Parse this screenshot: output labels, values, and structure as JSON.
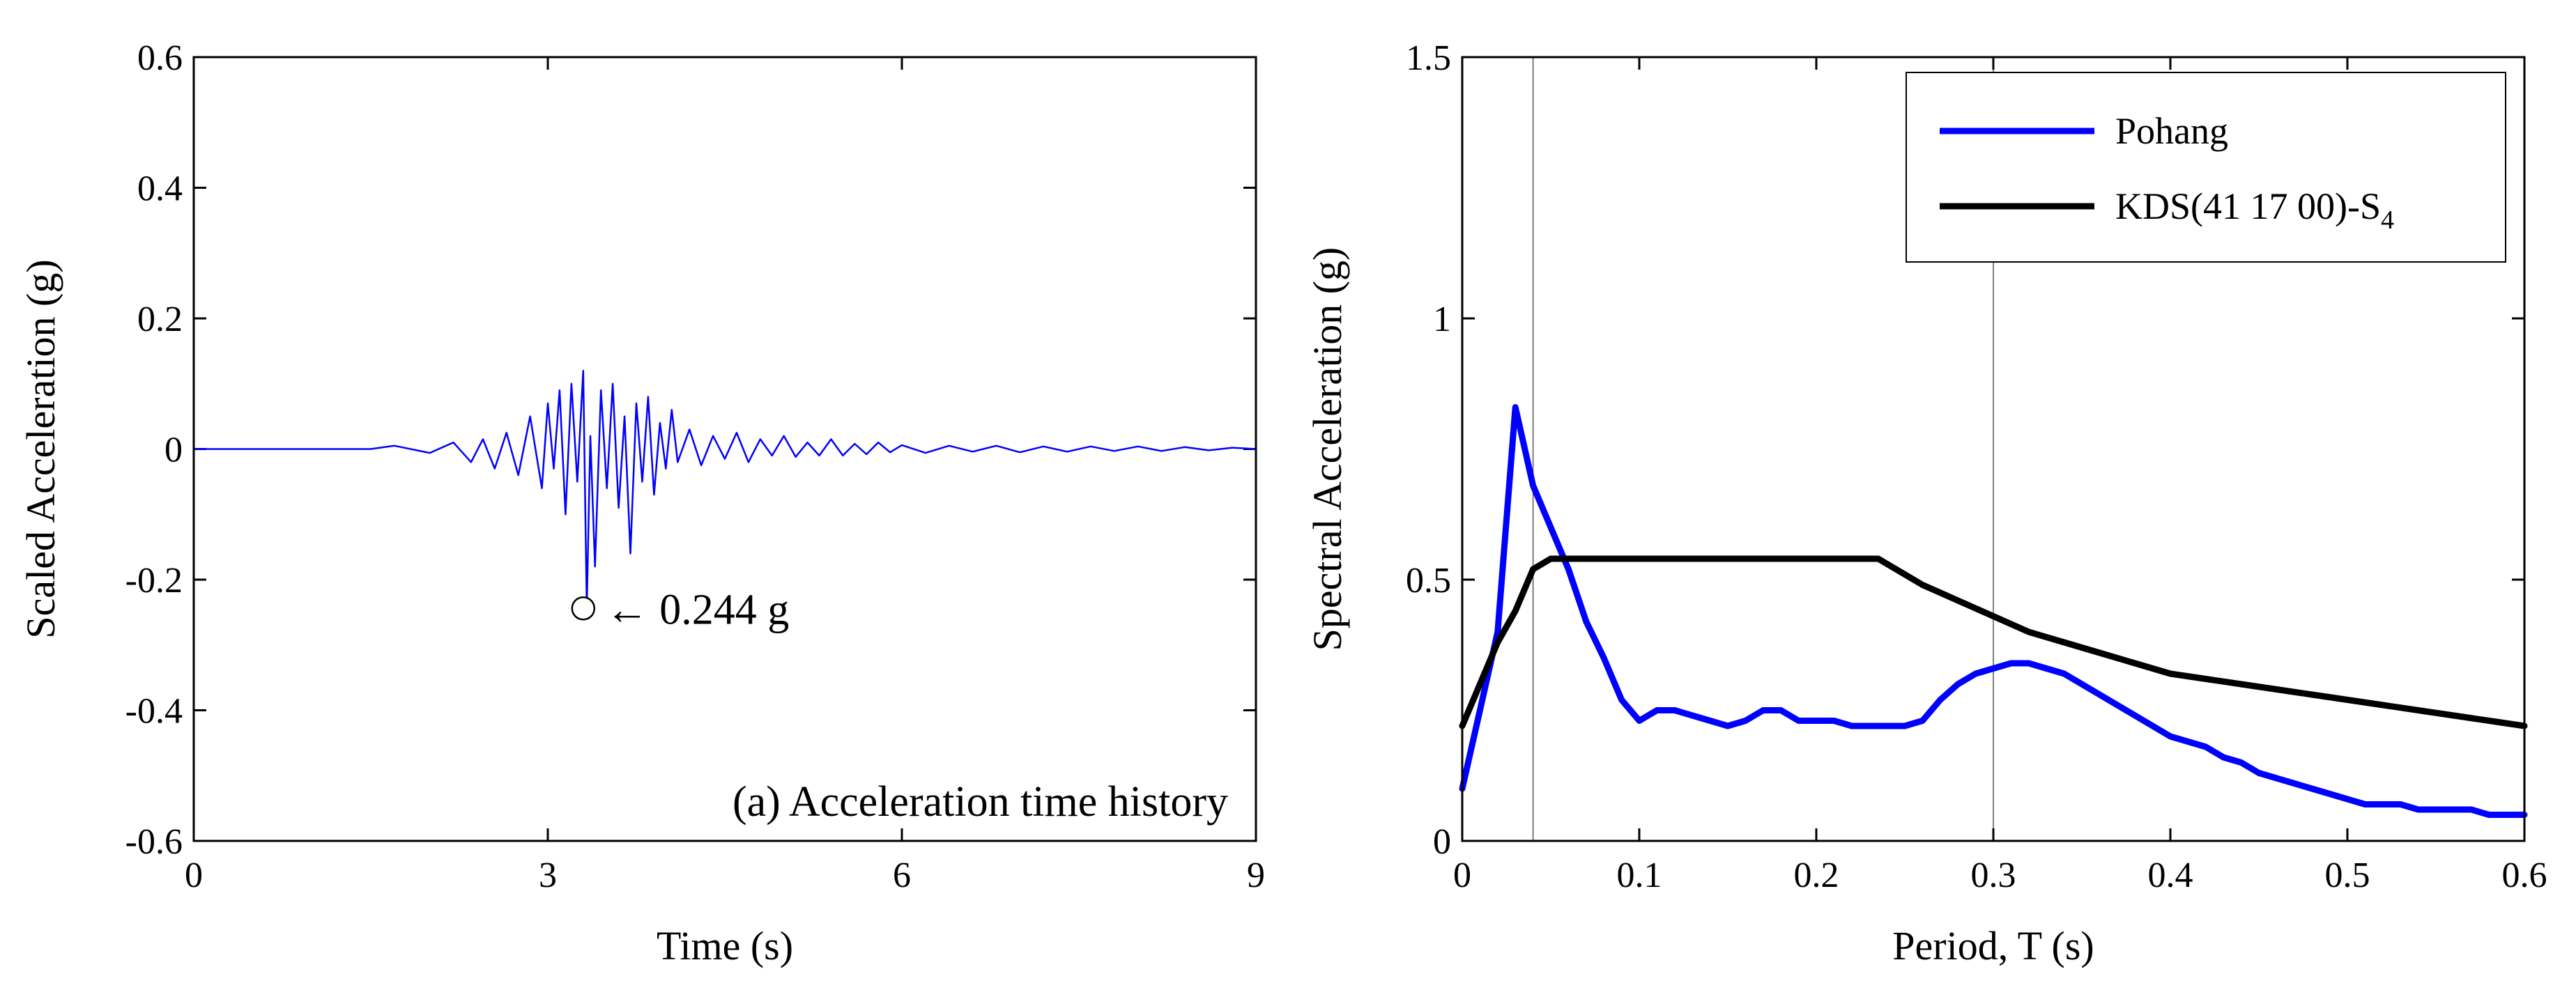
{
  "chart_data": [
    {
      "type": "line",
      "panel": "left",
      "title": "(a) Acceleration time history",
      "xlabel": "Time (s)",
      "ylabel": "Scaled Acceleration (g)",
      "xlim": [
        0,
        9
      ],
      "ylim": [
        -0.6,
        0.6
      ],
      "xticks": [
        0,
        3,
        6,
        9
      ],
      "xtick_labels": [
        "0",
        "3",
        "6",
        "9"
      ],
      "yticks": [
        0.6,
        0.4,
        0.2,
        0,
        -0.2,
        -0.4,
        -0.6
      ],
      "ytick_labels": [
        "0.6",
        "0.4",
        "0.2",
        "0",
        "-0.2",
        "-0.4",
        "-0.6"
      ],
      "series": [
        {
          "name": "acceleration",
          "color": "#0000ff",
          "x": [
            0,
            1.5,
            1.7,
            2.0,
            2.2,
            2.35,
            2.45,
            2.55,
            2.65,
            2.75,
            2.85,
            2.95,
            3.0,
            3.05,
            3.1,
            3.15,
            3.2,
            3.25,
            3.3,
            3.33,
            3.36,
            3.4,
            3.45,
            3.5,
            3.55,
            3.6,
            3.65,
            3.7,
            3.75,
            3.8,
            3.85,
            3.9,
            3.95,
            4.0,
            4.05,
            4.1,
            4.2,
            4.3,
            4.4,
            4.5,
            4.6,
            4.7,
            4.8,
            4.9,
            5.0,
            5.1,
            5.2,
            5.3,
            5.4,
            5.5,
            5.6,
            5.7,
            5.8,
            5.9,
            6.0,
            6.2,
            6.4,
            6.6,
            6.8,
            7.0,
            7.2,
            7.4,
            7.6,
            7.8,
            8.0,
            8.2,
            8.4,
            8.6,
            8.8,
            9.0
          ],
          "y": [
            0,
            0,
            0.005,
            -0.006,
            0.01,
            -0.02,
            0.015,
            -0.03,
            0.025,
            -0.04,
            0.05,
            -0.06,
            0.07,
            -0.03,
            0.09,
            -0.1,
            0.1,
            -0.05,
            0.12,
            -0.244,
            0.02,
            -0.18,
            0.09,
            -0.06,
            0.1,
            -0.09,
            0.05,
            -0.16,
            0.07,
            -0.05,
            0.08,
            -0.07,
            0.04,
            -0.03,
            0.06,
            -0.02,
            0.03,
            -0.025,
            0.02,
            -0.015,
            0.025,
            -0.02,
            0.015,
            -0.01,
            0.02,
            -0.012,
            0.01,
            -0.01,
            0.015,
            -0.01,
            0.008,
            -0.008,
            0.01,
            -0.005,
            0.006,
            -0.006,
            0.005,
            -0.004,
            0.005,
            -0.005,
            0.004,
            -0.004,
            0.004,
            -0.003,
            0.004,
            -0.003,
            0.003,
            -0.002,
            0.002,
            0
          ]
        }
      ],
      "annotations": [
        {
          "text": "← 0.244 g",
          "x": 3.3,
          "y": -0.244
        }
      ]
    },
    {
      "type": "line",
      "panel": "right",
      "title": "",
      "xlabel": "Period, T (s)",
      "ylabel": "Spectral Acceleration (g)",
      "xlim": [
        0,
        0.6
      ],
      "ylim": [
        0,
        1.5
      ],
      "xticks": [
        0,
        0.1,
        0.2,
        0.3,
        0.4,
        0.5,
        0.6
      ],
      "xtick_labels": [
        "0",
        "0.1",
        "0.2",
        "0.3",
        "0.4",
        "0.5",
        "0.6"
      ],
      "yticks": [
        1.5,
        1,
        0.5,
        0
      ],
      "ytick_labels": [
        "1.5",
        "1",
        "0.5",
        "0"
      ],
      "vlines": [
        0.04,
        0.3
      ],
      "legend": {
        "placement": "top-right"
      },
      "series": [
        {
          "name": "Pohang",
          "color": "#0000ff",
          "x": [
            0,
            0.01,
            0.02,
            0.03,
            0.04,
            0.05,
            0.06,
            0.07,
            0.08,
            0.09,
            0.1,
            0.11,
            0.12,
            0.13,
            0.14,
            0.15,
            0.16,
            0.17,
            0.18,
            0.19,
            0.2,
            0.21,
            0.22,
            0.23,
            0.24,
            0.25,
            0.26,
            0.27,
            0.28,
            0.29,
            0.3,
            0.31,
            0.32,
            0.33,
            0.34,
            0.35,
            0.36,
            0.37,
            0.38,
            0.39,
            0.4,
            0.41,
            0.42,
            0.43,
            0.44,
            0.45,
            0.46,
            0.47,
            0.48,
            0.49,
            0.5,
            0.51,
            0.52,
            0.53,
            0.54,
            0.55,
            0.56,
            0.57,
            0.58,
            0.59,
            0.6
          ],
          "y": [
            0.1,
            0.25,
            0.4,
            0.83,
            0.68,
            0.6,
            0.52,
            0.42,
            0.35,
            0.27,
            0.23,
            0.25,
            0.25,
            0.24,
            0.23,
            0.22,
            0.23,
            0.25,
            0.25,
            0.23,
            0.23,
            0.23,
            0.22,
            0.22,
            0.22,
            0.22,
            0.23,
            0.27,
            0.3,
            0.32,
            0.33,
            0.34,
            0.34,
            0.33,
            0.32,
            0.3,
            0.28,
            0.26,
            0.24,
            0.22,
            0.2,
            0.19,
            0.18,
            0.16,
            0.15,
            0.13,
            0.12,
            0.11,
            0.1,
            0.09,
            0.08,
            0.07,
            0.07,
            0.07,
            0.06,
            0.06,
            0.06,
            0.06,
            0.05,
            0.05,
            0.05
          ]
        },
        {
          "name": "KDS(41 17 00)-S",
          "name_subscript": "4",
          "color": "#000000",
          "x": [
            0,
            0.01,
            0.02,
            0.03,
            0.04,
            0.05,
            0.06,
            0.1,
            0.15,
            0.2,
            0.235,
            0.25,
            0.26,
            0.28,
            0.3,
            0.32,
            0.34,
            0.36,
            0.38,
            0.4,
            0.42,
            0.44,
            0.46,
            0.48,
            0.5,
            0.52,
            0.54,
            0.56,
            0.58,
            0.6
          ],
          "y": [
            0.22,
            0.3,
            0.38,
            0.44,
            0.52,
            0.54,
            0.54,
            0.54,
            0.54,
            0.54,
            0.54,
            0.51,
            0.49,
            0.46,
            0.43,
            0.4,
            0.38,
            0.36,
            0.34,
            0.32,
            0.31,
            0.3,
            0.29,
            0.28,
            0.27,
            0.26,
            0.25,
            0.24,
            0.23,
            0.22
          ]
        }
      ]
    }
  ]
}
